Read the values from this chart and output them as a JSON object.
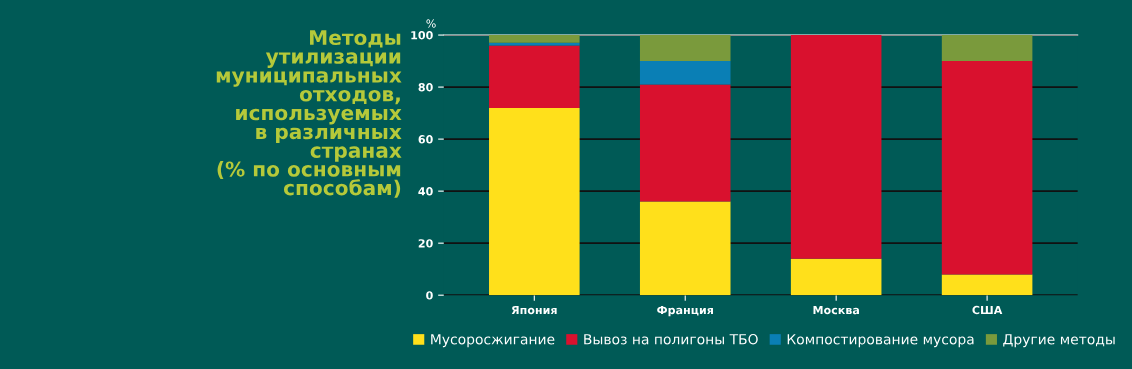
{
  "chart_data": {
    "type": "bar",
    "stacked": true,
    "title": "Методы\nутилизации\nмуниципальных\nотходов,\nиспользуемых\nв различных\nстранах\n(% по основным\nспособам)",
    "ylabel": "%",
    "categories": [
      "Япония",
      "Франция",
      "Москва",
      "США"
    ],
    "series": [
      {
        "name": "Мусоросжигание",
        "color": "#ffe01b",
        "values": [
          72,
          36,
          14,
          8
        ]
      },
      {
        "name": "Вывоз на полигоны ТБО",
        "color": "#d9112e",
        "values": [
          24,
          45,
          86,
          82
        ]
      },
      {
        "name": "Компостирование мусора",
        "color": "#0a7fb5",
        "values": [
          1,
          9,
          0,
          0
        ]
      },
      {
        "name": "Другие методы",
        "color": "#7a9a3c",
        "values": [
          3,
          10,
          0,
          10
        ]
      }
    ],
    "ylim": [
      0,
      100
    ],
    "yticks": [
      0,
      20,
      40,
      60,
      80,
      100
    ],
    "grid": "y",
    "legend": "bottom"
  }
}
